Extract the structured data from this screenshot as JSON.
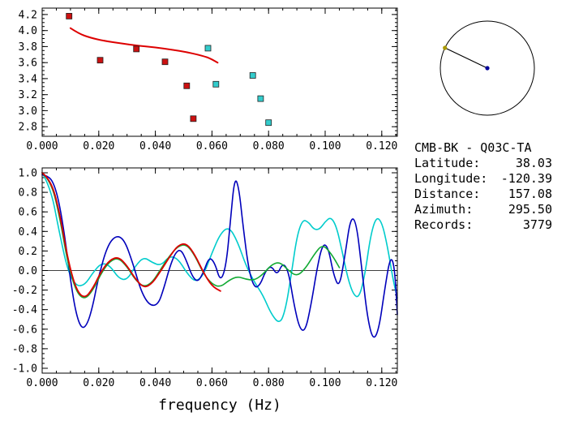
{
  "info": {
    "title": "CMB-BK - Q03C-TA",
    "rows": [
      {
        "label": "Latitude:",
        "value": "38.03"
      },
      {
        "label": "Longitude:",
        "value": "-120.39"
      },
      {
        "label": "Distance:",
        "value": "157.08"
      },
      {
        "label": "Azimuth:",
        "value": "295.50"
      },
      {
        "label": "Records:",
        "value": "3779"
      }
    ]
  },
  "compass": {
    "azimuth_deg": 295.5,
    "circle_color": "#000000",
    "line_color": "#000000",
    "center_dot_color": "#000099",
    "edge_dot_color": "#aa9900"
  },
  "colors": {
    "red": "#dd0000",
    "cyan": "#00cccc",
    "green": "#11aa33",
    "navy": "#0000bb"
  },
  "chart_data": [
    {
      "id": "dispersion",
      "type": "scatter",
      "title": "",
      "xlabel": "",
      "ylabel": "",
      "xlim": [
        0,
        0.1255
      ],
      "ylim": [
        2.68,
        4.28
      ],
      "grid": false,
      "xticks": {
        "values": [
          0,
          0.02,
          0.04,
          0.06,
          0.08,
          0.1,
          0.12
        ],
        "labels": [
          "0.000",
          "0.020",
          "0.040",
          "0.060",
          "0.080",
          "0.100",
          "0.120"
        ],
        "minor_step": 0.005
      },
      "yticks": {
        "values": [
          2.8,
          3.0,
          3.2,
          3.4,
          3.6,
          3.8,
          4.0,
          4.2
        ],
        "labels": [
          "2.8",
          "3.0",
          "3.2",
          "3.4",
          "3.6",
          "3.8",
          "4.0",
          "4.2"
        ],
        "minor_step": 0.05
      },
      "series": [
        {
          "name": "reference-dispersion-curve",
          "kind": "line",
          "color": "#dd0000",
          "width": 2,
          "points": [
            [
              0.01,
              4.03
            ],
            [
              0.013,
              3.96
            ],
            [
              0.017,
              3.91
            ],
            [
              0.022,
              3.87
            ],
            [
              0.028,
              3.84
            ],
            [
              0.034,
              3.81
            ],
            [
              0.04,
              3.79
            ],
            [
              0.046,
              3.76
            ],
            [
              0.051,
              3.73
            ],
            [
              0.055,
              3.7
            ],
            [
              0.058,
              3.67
            ],
            [
              0.06,
              3.64
            ],
            [
              0.062,
              3.6
            ]
          ]
        },
        {
          "name": "red-velocity-points",
          "kind": "scatter",
          "color": "#cc1111",
          "marker_size": 7,
          "points": [
            [
              0.0095,
              4.18
            ],
            [
              0.0205,
              3.63
            ],
            [
              0.0333,
              3.77
            ],
            [
              0.0434,
              3.61
            ],
            [
              0.0511,
              3.31
            ],
            [
              0.0534,
              2.9
            ]
          ]
        },
        {
          "name": "cyan-velocity-points",
          "kind": "scatter",
          "color": "#33cccc",
          "marker_size": 7,
          "points": [
            [
              0.0586,
              3.78
            ],
            [
              0.0614,
              3.33
            ],
            [
              0.0744,
              3.44
            ],
            [
              0.0772,
              3.15
            ],
            [
              0.08,
              2.85
            ]
          ]
        }
      ]
    },
    {
      "id": "waveform",
      "type": "line",
      "title": "",
      "xlabel": "frequency (Hz)",
      "ylabel": "",
      "xlim": [
        0,
        0.1255
      ],
      "ylim": [
        -1.05,
        1.05
      ],
      "grid": false,
      "zero_line": true,
      "xticks": {
        "values": [
          0,
          0.02,
          0.04,
          0.06,
          0.08,
          0.1,
          0.12
        ],
        "labels": [
          "0.000",
          "0.020",
          "0.040",
          "0.060",
          "0.080",
          "0.100",
          "0.120"
        ],
        "minor_step": 0.005
      },
      "yticks": {
        "values": [
          -1.0,
          -0.8,
          -0.6,
          -0.4,
          -0.2,
          0.0,
          0.2,
          0.4,
          0.6,
          0.8,
          1.0
        ],
        "labels": [
          "-1.0",
          "-0.8",
          "-0.6",
          "-0.4",
          "-0.2",
          "0.0",
          "0.2",
          "0.4",
          "0.6",
          "0.8",
          "1.0"
        ],
        "minor_step": 0.05
      },
      "series": [
        {
          "name": "cyan-correlation-trace",
          "kind": "line",
          "color": "#00cccc",
          "width": 1.6,
          "points": [
            [
              0.0,
              1.0
            ],
            [
              0.003,
              0.85
            ],
            [
              0.006,
              0.4
            ],
            [
              0.009,
              0.0
            ],
            [
              0.012,
              -0.16
            ],
            [
              0.015,
              -0.15
            ],
            [
              0.018,
              -0.02
            ],
            [
              0.021,
              0.08
            ],
            [
              0.024,
              0.05
            ],
            [
              0.027,
              -0.08
            ],
            [
              0.03,
              -0.1
            ],
            [
              0.033,
              0.05
            ],
            [
              0.036,
              0.14
            ],
            [
              0.039,
              0.08
            ],
            [
              0.042,
              0.05
            ],
            [
              0.045,
              0.15
            ],
            [
              0.048,
              0.12
            ],
            [
              0.051,
              -0.02
            ],
            [
              0.054,
              -0.12
            ],
            [
              0.057,
              -0.05
            ],
            [
              0.06,
              0.18
            ],
            [
              0.063,
              0.38
            ],
            [
              0.066,
              0.45
            ],
            [
              0.069,
              0.3
            ],
            [
              0.072,
              0.05
            ],
            [
              0.075,
              -0.12
            ],
            [
              0.078,
              -0.25
            ],
            [
              0.081,
              -0.45
            ],
            [
              0.084,
              -0.55
            ],
            [
              0.086,
              -0.4
            ],
            [
              0.088,
              -0.05
            ],
            [
              0.09,
              0.35
            ],
            [
              0.092,
              0.52
            ],
            [
              0.094,
              0.5
            ],
            [
              0.096,
              0.42
            ],
            [
              0.098,
              0.42
            ],
            [
              0.1,
              0.5
            ],
            [
              0.102,
              0.55
            ],
            [
              0.104,
              0.45
            ],
            [
              0.106,
              0.2
            ],
            [
              0.108,
              -0.08
            ],
            [
              0.11,
              -0.25
            ],
            [
              0.112,
              -0.28
            ],
            [
              0.114,
              -0.05
            ],
            [
              0.116,
              0.35
            ],
            [
              0.118,
              0.55
            ],
            [
              0.12,
              0.5
            ],
            [
              0.122,
              0.25
            ],
            [
              0.124,
              -0.1
            ],
            [
              0.1255,
              -0.28
            ]
          ]
        },
        {
          "name": "navy-correlation-trace",
          "kind": "line",
          "color": "#0000bb",
          "width": 1.6,
          "points": [
            [
              0.0,
              0.98
            ],
            [
              0.002,
              0.97
            ],
            [
              0.004,
              0.9
            ],
            [
              0.006,
              0.7
            ],
            [
              0.008,
              0.35
            ],
            [
              0.01,
              -0.1
            ],
            [
              0.012,
              -0.45
            ],
            [
              0.014,
              -0.6
            ],
            [
              0.016,
              -0.55
            ],
            [
              0.018,
              -0.35
            ],
            [
              0.02,
              -0.05
            ],
            [
              0.023,
              0.25
            ],
            [
              0.026,
              0.36
            ],
            [
              0.029,
              0.32
            ],
            [
              0.032,
              0.08
            ],
            [
              0.035,
              -0.22
            ],
            [
              0.038,
              -0.36
            ],
            [
              0.041,
              -0.35
            ],
            [
              0.043,
              -0.18
            ],
            [
              0.045,
              0.03
            ],
            [
              0.047,
              0.18
            ],
            [
              0.049,
              0.22
            ],
            [
              0.051,
              0.1
            ],
            [
              0.053,
              -0.06
            ],
            [
              0.055,
              -0.12
            ],
            [
              0.057,
              -0.02
            ],
            [
              0.059,
              0.14
            ],
            [
              0.061,
              0.08
            ],
            [
              0.063,
              -0.12
            ],
            [
              0.065,
              0.05
            ],
            [
              0.0665,
              0.5
            ],
            [
              0.068,
              0.96
            ],
            [
              0.0695,
              0.85
            ],
            [
              0.071,
              0.45
            ],
            [
              0.073,
              0.0
            ],
            [
              0.075,
              -0.18
            ],
            [
              0.077,
              -0.15
            ],
            [
              0.079,
              0.0
            ],
            [
              0.081,
              0.05
            ],
            [
              0.083,
              -0.05
            ],
            [
              0.085,
              0.08
            ],
            [
              0.087,
              0.0
            ],
            [
              0.089,
              -0.35
            ],
            [
              0.091,
              -0.6
            ],
            [
              0.093,
              -0.62
            ],
            [
              0.095,
              -0.35
            ],
            [
              0.097,
              0.0
            ],
            [
              0.099,
              0.27
            ],
            [
              0.101,
              0.25
            ],
            [
              0.103,
              -0.05
            ],
            [
              0.105,
              -0.18
            ],
            [
              0.107,
              0.15
            ],
            [
              0.109,
              0.55
            ],
            [
              0.111,
              0.5
            ],
            [
              0.113,
              0.0
            ],
            [
              0.115,
              -0.5
            ],
            [
              0.117,
              -0.72
            ],
            [
              0.119,
              -0.6
            ],
            [
              0.121,
              -0.2
            ],
            [
              0.123,
              0.15
            ],
            [
              0.1245,
              0.05
            ],
            [
              0.1255,
              -0.45
            ]
          ]
        },
        {
          "name": "green-correlation-trace",
          "kind": "line",
          "color": "#11aa33",
          "width": 1.6,
          "points": [
            [
              0.0,
              1.0
            ],
            [
              0.003,
              0.92
            ],
            [
              0.006,
              0.58
            ],
            [
              0.009,
              0.08
            ],
            [
              0.012,
              -0.22
            ],
            [
              0.015,
              -0.3
            ],
            [
              0.018,
              -0.2
            ],
            [
              0.021,
              -0.02
            ],
            [
              0.024,
              0.1
            ],
            [
              0.027,
              0.13
            ],
            [
              0.03,
              0.04
            ],
            [
              0.033,
              -0.1
            ],
            [
              0.036,
              -0.17
            ],
            [
              0.039,
              -0.12
            ],
            [
              0.042,
              0.02
            ],
            [
              0.045,
              0.15
            ],
            [
              0.048,
              0.25
            ],
            [
              0.051,
              0.27
            ],
            [
              0.054,
              0.15
            ],
            [
              0.057,
              -0.03
            ],
            [
              0.06,
              -0.14
            ],
            [
              0.063,
              -0.17
            ],
            [
              0.066,
              -0.1
            ],
            [
              0.069,
              -0.06
            ],
            [
              0.072,
              -0.09
            ],
            [
              0.075,
              -0.1
            ],
            [
              0.078,
              -0.04
            ],
            [
              0.081,
              0.06
            ],
            [
              0.084,
              0.09
            ],
            [
              0.087,
              0.0
            ],
            [
              0.09,
              -0.06
            ],
            [
              0.093,
              0.02
            ],
            [
              0.096,
              0.16
            ],
            [
              0.099,
              0.27
            ],
            [
              0.102,
              0.18
            ],
            [
              0.105,
              0.03
            ]
          ]
        },
        {
          "name": "red-correlation-trace",
          "kind": "line",
          "color": "#dd0000",
          "width": 1.8,
          "points": [
            [
              0.0,
              1.0
            ],
            [
              0.003,
              0.93
            ],
            [
              0.006,
              0.62
            ],
            [
              0.009,
              0.12
            ],
            [
              0.012,
              -0.2
            ],
            [
              0.015,
              -0.29
            ],
            [
              0.018,
              -0.18
            ],
            [
              0.021,
              0.0
            ],
            [
              0.024,
              0.11
            ],
            [
              0.027,
              0.14
            ],
            [
              0.03,
              0.05
            ],
            [
              0.033,
              -0.09
            ],
            [
              0.036,
              -0.18
            ],
            [
              0.039,
              -0.13
            ],
            [
              0.042,
              0.0
            ],
            [
              0.045,
              0.14
            ],
            [
              0.048,
              0.26
            ],
            [
              0.051,
              0.28
            ],
            [
              0.054,
              0.16
            ],
            [
              0.057,
              -0.02
            ],
            [
              0.06,
              -0.16
            ],
            [
              0.063,
              -0.21
            ]
          ]
        }
      ]
    }
  ]
}
